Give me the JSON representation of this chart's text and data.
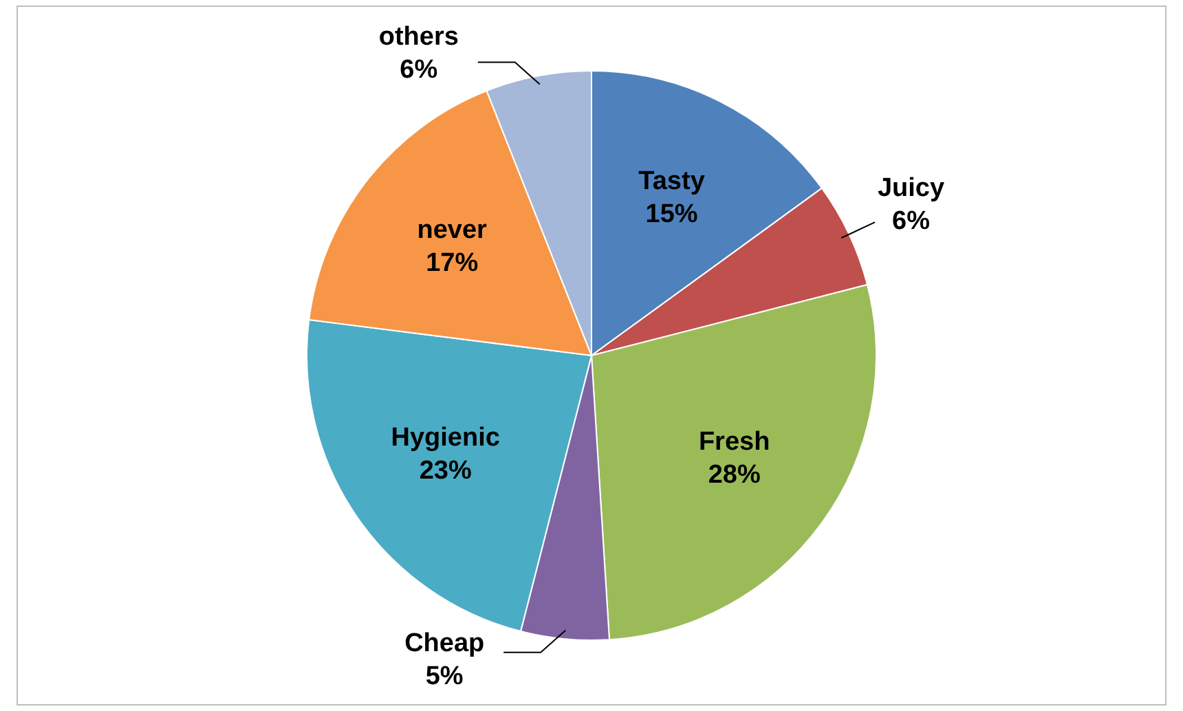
{
  "chart_data": {
    "type": "pie",
    "categories": [
      "Tasty",
      "Juicy",
      "Fresh",
      "Cheap",
      "Hygienic",
      "never",
      "others"
    ],
    "values": [
      15,
      6,
      28,
      5,
      23,
      17,
      6
    ],
    "value_labels": [
      "15%",
      "6%",
      "28%",
      "5%",
      "23%",
      "17%",
      "6%"
    ],
    "colors": [
      "#4f81bd",
      "#c0504d",
      "#9bbb59",
      "#8064a2",
      "#4bacc6",
      "#f79646",
      "#a5b8d9"
    ],
    "legend": false
  }
}
